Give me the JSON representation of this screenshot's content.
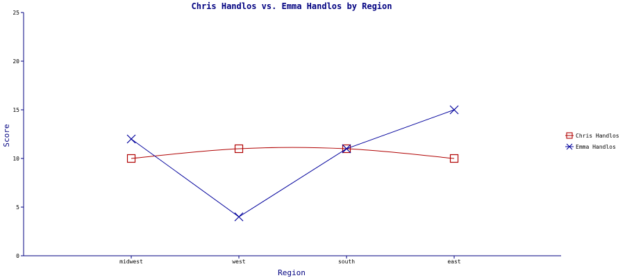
{
  "chart_data": {
    "type": "line",
    "title": "Chris Handlos vs. Emma Handlos by Region",
    "xlabel": "Region",
    "ylabel": "Score",
    "categories": [
      "midwest",
      "west",
      "south",
      "east"
    ],
    "ylim": [
      0,
      25
    ],
    "yticks": [
      0,
      5,
      10,
      15,
      20,
      25
    ],
    "grid": false,
    "legend_position": "right",
    "series": [
      {
        "name": "Chris Handlos",
        "values": [
          10,
          11,
          11,
          10
        ],
        "color": "#b00000",
        "marker": "square"
      },
      {
        "name": "Emma Handlos",
        "values": [
          12,
          4,
          11,
          15
        ],
        "color": "#00009c",
        "marker": "x"
      }
    ]
  }
}
